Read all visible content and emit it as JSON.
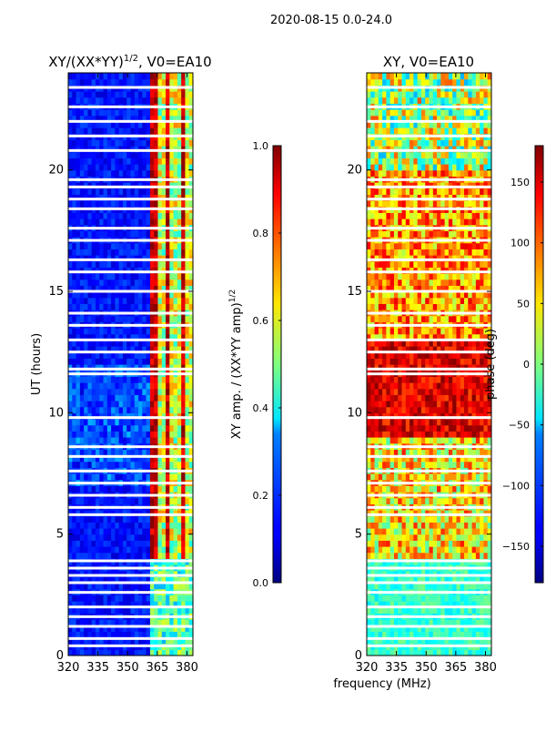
{
  "figure": {
    "suptitle": "2020-08-15 0.0-24.0"
  },
  "chart_data": [
    {
      "type": "heatmap",
      "title_prefix": "XY/(XX*YY)",
      "title_exponent": "1/2",
      "title_suffix": ", V0=EA10",
      "xlabel": "",
      "ylabel": "UT (hours)",
      "xlim": [
        320,
        383
      ],
      "ylim": [
        0,
        24
      ],
      "xticks": [
        320,
        335,
        350,
        365,
        380
      ],
      "yticks": [
        0,
        5,
        10,
        15,
        20
      ],
      "colorbar": {
        "label_prefix": "XY amp. / (XX*YY amp)",
        "label_exponent": "1/2",
        "range": [
          0.0,
          1.0
        ],
        "ticks": [
          "0.0",
          "0.2",
          "0.4",
          "0.6",
          "0.8",
          "1.0"
        ],
        "tick_values": [
          0.0,
          0.2,
          0.4,
          0.6,
          0.8,
          1.0
        ]
      }
    },
    {
      "type": "heatmap",
      "title": "XY, V0=EA10",
      "xlabel": "frequency (MHz)",
      "ylabel": "",
      "xlim": [
        320,
        383
      ],
      "ylim": [
        0,
        24
      ],
      "xticks": [
        320,
        335,
        350,
        365,
        380
      ],
      "yticks": [
        0,
        5,
        10,
        15,
        20
      ],
      "colorbar": {
        "label": "phase (deg)",
        "range": [
          -180,
          180
        ],
        "ticks": [
          "−150",
          "−100",
          "−50",
          "0",
          "50",
          "100",
          "150"
        ],
        "tick_values": [
          -150,
          -100,
          -50,
          0,
          50,
          100,
          150
        ]
      }
    }
  ],
  "colors": {
    "jet_low": "#00007f",
    "jet_mid": "#7fff7f",
    "jet_high": "#7f0000",
    "gap": "#ffffff"
  }
}
